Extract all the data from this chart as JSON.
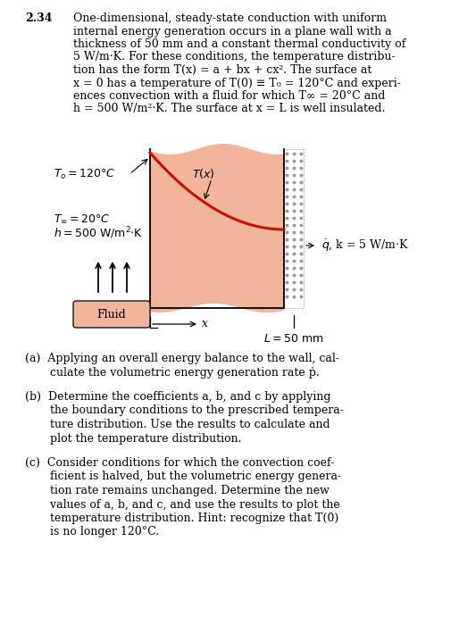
{
  "bg_color": "#ffffff",
  "wall_fill_color": "#f2b49a",
  "curve_color": "#c41200",
  "fluid_bubble_color": "#f2b49a",
  "title_num": "2.34",
  "problem_text_line1": "One-dimensional, steady-state conduction with uniform",
  "problem_text_line2": "internal energy generation occurs in a plane wall with a",
  "problem_text_line3": "thickness of 50 mm and a constant thermal conductivity of",
  "problem_text_line4": "5 W/m·K. For these conditions, the temperature distribu-",
  "problem_text_line5": "tion has the form T(x) = a + bx + cx². The surface at",
  "problem_text_line6": "x = 0 has a temperature of T(0) ≡ T₀ = 120°C and experi-",
  "problem_text_line7": "ences convection with a fluid for which T∞ = 20°C and",
  "problem_text_line8": "h = 500 W/m²·K. The surface at x = L is well insulated.",
  "part_a_line1": "(a)  Applying an overall energy balance to the wall, cal-",
  "part_a_line2": "       culate the volumetric energy generation rate ṗ.",
  "part_b_line1": "(b)  Determine the coefficients a, b, and c by applying",
  "part_b_line2": "       the boundary conditions to the prescribed tempera-",
  "part_b_line3": "       ture distribution. Use the results to calculate and",
  "part_b_line4": "       plot the temperature distribution.",
  "part_c_line1": "(c)  Consider conditions for which the convection coef-",
  "part_c_line2": "       ficient is halved, but the volumetric energy genera-",
  "part_c_line3": "       tion rate remains unchanged. Determine the new",
  "part_c_line4": "       values of a, b, and c, and use the results to plot the",
  "part_c_line5": "       temperature distribution. Hint: recognize that T(0)",
  "part_c_line6": "       is no longer 120°C.",
  "label_T0": "T₀ = 120°C",
  "label_Tinf": "T∞ = 20°C",
  "label_h": "h = 500 W/m²·K",
  "label_Tx": "T(x)",
  "label_qdot": "ṗ, k = 5 W/m·K",
  "label_Fluid": "Fluid",
  "label_L": "L = 50 mm"
}
